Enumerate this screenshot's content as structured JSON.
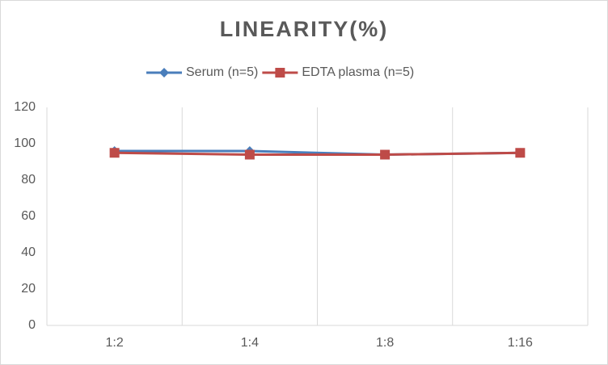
{
  "chart_data": {
    "type": "line",
    "title": "LINEARITY(%)",
    "categories": [
      "1:2",
      "1:4",
      "1:8",
      "1:16"
    ],
    "series": [
      {
        "name": "Serum (n=5)",
        "color": "#4a7ebb",
        "marker": "diamond",
        "values": [
          96,
          96,
          94,
          95
        ]
      },
      {
        "name": "EDTA plasma (n=5)",
        "color": "#be4b48",
        "marker": "square",
        "values": [
          95,
          94,
          94,
          95
        ]
      }
    ],
    "ylim": [
      0,
      120
    ],
    "yticks": [
      0,
      20,
      40,
      60,
      80,
      100,
      120
    ],
    "grid": true,
    "legend": "top"
  }
}
